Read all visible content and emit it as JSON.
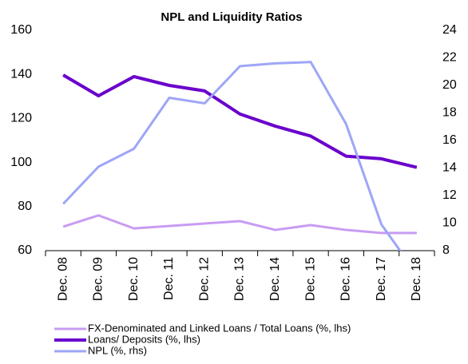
{
  "chart_data": {
    "type": "line",
    "title": "NPL and Liquidity  Ratios",
    "categories": [
      "Dec. 08",
      "Dec. 09",
      "Dec. 10",
      "Dec. 11",
      "Dec. 12",
      "Dec. 13",
      "Dec. 14",
      "Dec. 15",
      "Dec. 16",
      "Dec. 17",
      "Dec. 18"
    ],
    "series": [
      {
        "name": "FX-Denominated and Linked Loans / Total Loans (%, lhs)",
        "color": "#c89cf2",
        "values": [
          70.9,
          76,
          70.1,
          71.2,
          72.3,
          73.4,
          69.4,
          71.6,
          69.4,
          68,
          68
        ]
      },
      {
        "name": "Loans/ Deposits (%, lhs)",
        "color": "#6a00cc",
        "values": [
          139.7,
          130.3,
          139,
          135,
          132.5,
          122,
          116.5,
          112,
          102.9,
          101.7,
          97.8
        ]
      },
      {
        "name": "NPL (%, rhs)",
        "color": "#9ea6f6",
        "axis": "y2",
        "values": [
          11.4,
          14.1,
          15.4,
          19.1,
          18.7,
          21.4,
          21.6,
          21.7,
          17.2,
          9.9,
          6.3
        ]
      }
    ],
    "ylim": [
      60,
      160
    ],
    "yticks": [
      60,
      80,
      100,
      120,
      140,
      160
    ],
    "y2lim": [
      8,
      24
    ],
    "y2ticks": [
      8,
      10,
      12,
      14,
      16,
      18,
      20,
      22,
      24
    ],
    "grid": false,
    "legend": "bottom"
  }
}
